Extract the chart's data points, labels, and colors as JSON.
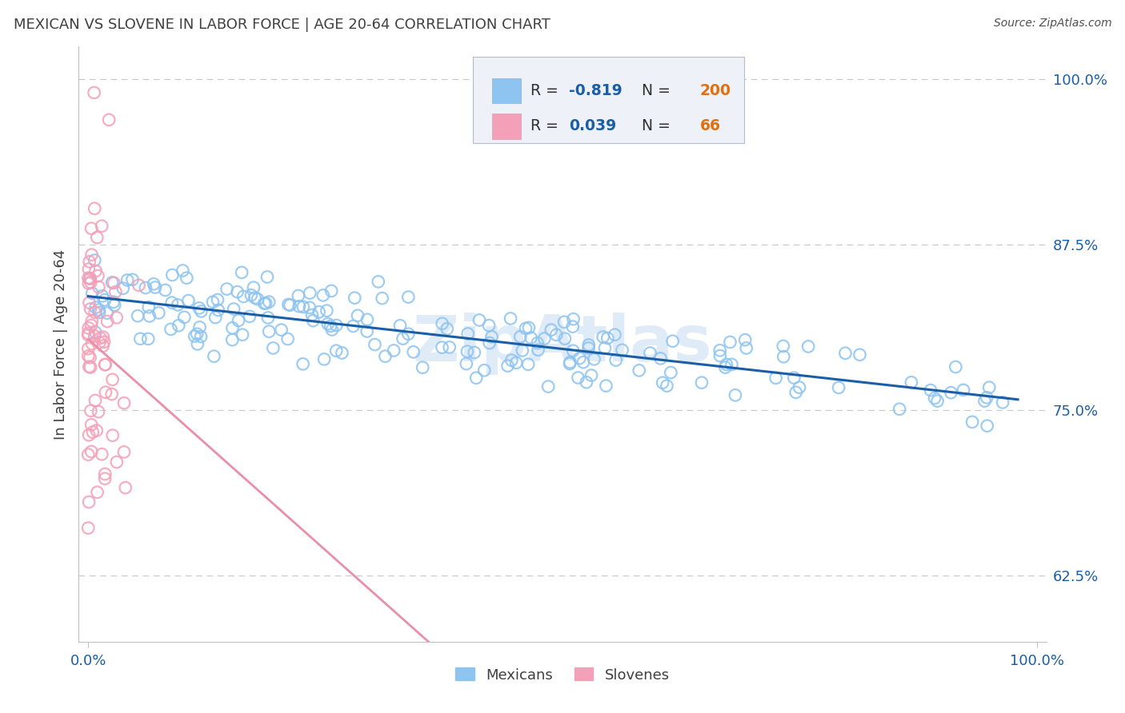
{
  "title": "MEXICAN VS SLOVENE IN LABOR FORCE | AGE 20-64 CORRELATION CHART",
  "source": "Source: ZipAtlas.com",
  "ylabel": "In Labor Force | Age 20-64",
  "xlim": [
    -0.01,
    1.01
  ],
  "ylim": [
    0.575,
    1.025
  ],
  "yticks": [
    0.625,
    0.75,
    0.875,
    1.0
  ],
  "ytick_labels": [
    "62.5%",
    "75.0%",
    "87.5%",
    "100.0%"
  ],
  "xticks": [
    0.0,
    1.0
  ],
  "xtick_labels": [
    "0.0%",
    "100.0%"
  ],
  "mexican_color": "#8ec4f0",
  "slovene_color": "#f4a0b8",
  "mexican_line_color": "#1a5ea8",
  "slovene_line_color": "#e890a8",
  "legend_text_color": "#1a5ea8",
  "legend_N_color": "#e07010",
  "background_color": "#ffffff",
  "grid_color": "#c8c8c8",
  "title_color": "#404040",
  "watermark_text": "ZipAtlas",
  "watermark_color": "#c0d8f0",
  "mexican_R": -0.819,
  "mexican_N": 200,
  "slovene_R": 0.039,
  "slovene_N": 66
}
